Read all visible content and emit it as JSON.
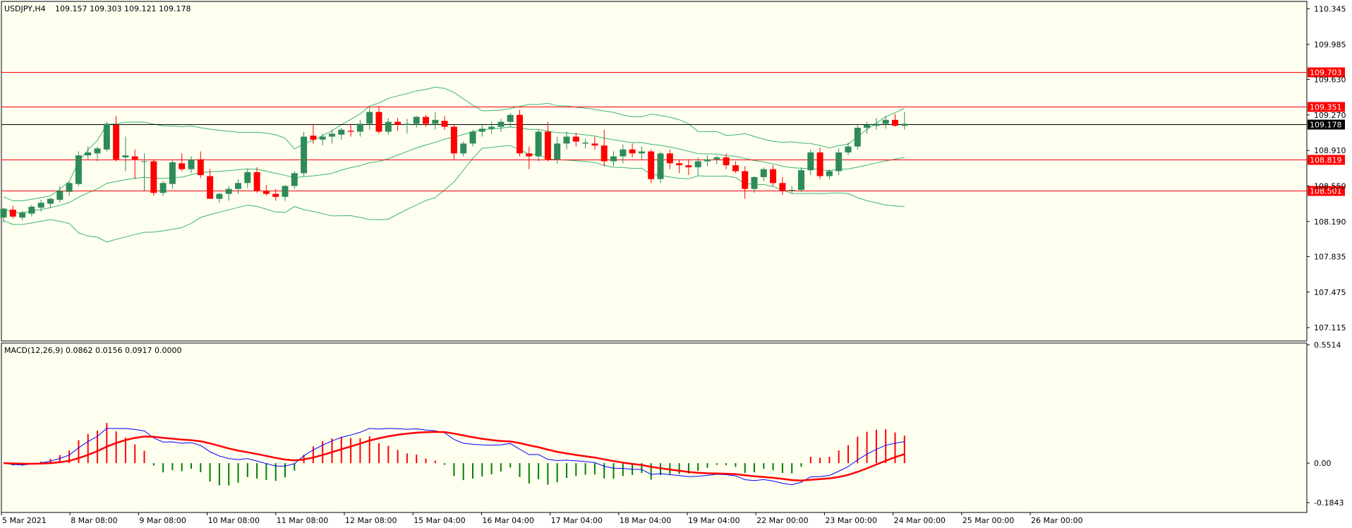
{
  "header": {
    "symbol": "USDJPY,H4",
    "ohlc": "109.157 109.303 109.121 109.178"
  },
  "macd": {
    "label": "MACD(12,26,9) 0.0862 0.0156 0.0917 0.0000"
  },
  "colors": {
    "background": "#fffff0",
    "bull_candle": "#2e8b57",
    "bear_candle": "#ff0000",
    "bollinger": "#3cb371",
    "level_line": "#ff0000",
    "price_line": "#000000",
    "macd_main": "#0000ff",
    "macd_signal": "#ff0000",
    "hist_positive": "#ff0000",
    "hist_negative": "#008000"
  },
  "chart_data": [
    {
      "type": "candlestick",
      "title": "USDJPY,H4",
      "ylim": [
        106.98,
        110.42
      ],
      "y_ticks": [
        "110.345",
        "109.985",
        "109.630",
        "109.270",
        "108.910",
        "108.550",
        "108.190",
        "107.835",
        "107.475",
        "107.115"
      ],
      "horizontal_levels": [
        {
          "value": 109.703,
          "label": "109.703"
        },
        {
          "value": 109.351,
          "label": "109.351"
        },
        {
          "value": 108.819,
          "label": "108.819"
        },
        {
          "value": 108.501,
          "label": "108.501"
        }
      ],
      "current_price": {
        "value": 109.178,
        "label": "109.178"
      },
      "x_labels": [
        "5 Mar 2021",
        "8 Mar 08:00",
        "9 Mar 08:00",
        "10 Mar 08:00",
        "11 Mar 08:00",
        "12 Mar 08:00",
        "15 Mar 04:00",
        "16 Mar 04:00",
        "17 Mar 04:00",
        "18 Mar 04:00",
        "19 Mar 04:00",
        "22 Mar 00:00",
        "23 Mar 00:00",
        "24 Mar 00:00",
        "25 Mar 00:00",
        "26 Mar 00:00"
      ],
      "candles": [
        [
          108.23,
          108.33,
          108.18,
          108.32
        ],
        [
          108.31,
          108.35,
          108.22,
          108.24
        ],
        [
          108.23,
          108.3,
          108.2,
          108.28
        ],
        [
          108.27,
          108.36,
          108.24,
          108.34
        ],
        [
          108.33,
          108.41,
          108.29,
          108.38
        ],
        [
          108.37,
          108.43,
          108.33,
          108.42
        ],
        [
          108.41,
          108.55,
          108.38,
          108.5
        ],
        [
          108.49,
          108.6,
          108.45,
          108.58
        ],
        [
          108.57,
          108.9,
          108.55,
          108.86
        ],
        [
          108.86,
          108.95,
          108.82,
          108.89
        ],
        [
          108.88,
          108.95,
          108.8,
          108.93
        ],
        [
          108.92,
          109.2,
          108.9,
          109.18
        ],
        [
          109.17,
          109.26,
          108.8,
          108.82
        ],
        [
          108.84,
          109.05,
          108.7,
          108.86
        ],
        [
          108.85,
          108.92,
          108.62,
          108.82
        ],
        [
          108.8,
          108.88,
          108.5,
          108.8
        ],
        [
          108.8,
          108.82,
          108.45,
          108.48
        ],
        [
          108.48,
          108.6,
          108.45,
          108.58
        ],
        [
          108.57,
          108.82,
          108.52,
          108.79
        ],
        [
          108.78,
          108.88,
          108.7,
          108.72
        ],
        [
          108.72,
          108.85,
          108.68,
          108.82
        ],
        [
          108.82,
          108.9,
          108.63,
          108.66
        ],
        [
          108.65,
          108.72,
          108.42,
          108.42
        ],
        [
          108.42,
          108.48,
          108.38,
          108.47
        ],
        [
          108.47,
          108.55,
          108.4,
          108.52
        ],
        [
          108.52,
          108.62,
          108.47,
          108.58
        ],
        [
          108.58,
          108.72,
          108.53,
          108.69
        ],
        [
          108.69,
          108.74,
          108.48,
          108.5
        ],
        [
          108.5,
          108.56,
          108.45,
          108.47
        ],
        [
          108.47,
          108.52,
          108.4,
          108.44
        ],
        [
          108.44,
          108.56,
          108.4,
          108.55
        ],
        [
          108.55,
          108.7,
          108.52,
          108.68
        ],
        [
          108.68,
          109.1,
          108.65,
          109.05
        ],
        [
          109.06,
          109.18,
          108.98,
          109.02
        ],
        [
          109.02,
          109.08,
          108.96,
          109.05
        ],
        [
          109.05,
          109.12,
          108.98,
          109.08
        ],
        [
          109.07,
          109.14,
          109.02,
          109.12
        ],
        [
          109.11,
          109.18,
          109.05,
          109.1
        ],
        [
          109.1,
          109.22,
          109.05,
          109.18
        ],
        [
          109.18,
          109.35,
          109.12,
          109.3
        ],
        [
          109.3,
          109.36,
          109.08,
          109.1
        ],
        [
          109.1,
          109.24,
          109.07,
          109.2
        ],
        [
          109.2,
          109.24,
          109.11,
          109.17
        ],
        [
          109.17,
          109.23,
          109.08,
          109.18
        ],
        [
          109.18,
          109.26,
          109.14,
          109.25
        ],
        [
          109.25,
          109.27,
          109.15,
          109.18
        ],
        [
          109.18,
          109.3,
          109.12,
          109.22
        ],
        [
          109.21,
          109.26,
          109.12,
          109.15
        ],
        [
          109.15,
          109.18,
          108.82,
          108.88
        ],
        [
          108.88,
          109.0,
          108.85,
          108.98
        ],
        [
          108.98,
          109.12,
          108.95,
          109.1
        ],
        [
          109.1,
          109.18,
          109.05,
          109.13
        ],
        [
          109.13,
          109.2,
          109.08,
          109.15
        ],
        [
          109.15,
          109.23,
          109.1,
          109.2
        ],
        [
          109.2,
          109.29,
          109.15,
          109.27
        ],
        [
          109.27,
          109.32,
          108.85,
          108.88
        ],
        [
          108.88,
          108.95,
          108.72,
          108.85
        ],
        [
          108.85,
          109.12,
          108.8,
          109.1
        ],
        [
          109.1,
          109.2,
          108.8,
          108.82
        ],
        [
          108.82,
          109.05,
          108.78,
          108.98
        ],
        [
          108.98,
          109.1,
          108.92,
          109.05
        ],
        [
          109.05,
          109.09,
          108.95,
          109.0
        ],
        [
          108.98,
          109.03,
          108.93,
          108.99
        ],
        [
          108.98,
          109.05,
          108.92,
          108.96
        ],
        [
          108.96,
          109.12,
          108.75,
          108.8
        ],
        [
          108.8,
          108.9,
          108.75,
          108.85
        ],
        [
          108.85,
          108.97,
          108.78,
          108.92
        ],
        [
          108.92,
          108.98,
          108.84,
          108.88
        ],
        [
          108.88,
          108.95,
          108.82,
          108.9
        ],
        [
          108.9,
          108.92,
          108.58,
          108.62
        ],
        [
          108.62,
          108.9,
          108.58,
          108.88
        ],
        [
          108.88,
          108.92,
          108.72,
          108.78
        ],
        [
          108.78,
          108.82,
          108.68,
          108.76
        ],
        [
          108.76,
          108.82,
          108.66,
          108.74
        ],
        [
          108.74,
          108.84,
          108.66,
          108.8
        ],
        [
          108.8,
          108.86,
          108.75,
          108.82
        ],
        [
          108.82,
          108.86,
          108.77,
          108.84
        ],
        [
          108.84,
          108.88,
          108.72,
          108.76
        ],
        [
          108.76,
          108.8,
          108.68,
          108.7
        ],
        [
          108.7,
          108.75,
          108.42,
          108.52
        ],
        [
          108.52,
          108.65,
          108.48,
          108.64
        ],
        [
          108.64,
          108.74,
          108.6,
          108.72
        ],
        [
          108.72,
          108.76,
          108.55,
          108.58
        ],
        [
          108.58,
          108.64,
          108.46,
          108.5
        ],
        [
          108.5,
          108.55,
          108.47,
          108.51
        ],
        [
          108.51,
          108.74,
          108.49,
          108.71
        ],
        [
          108.71,
          108.92,
          108.66,
          108.89
        ],
        [
          108.89,
          108.94,
          108.62,
          108.65
        ],
        [
          108.65,
          108.72,
          108.62,
          108.7
        ],
        [
          108.7,
          108.93,
          108.66,
          108.89
        ],
        [
          108.89,
          108.99,
          108.86,
          108.95
        ],
        [
          108.95,
          109.18,
          108.92,
          109.14
        ],
        [
          109.14,
          109.2,
          109.08,
          109.17
        ],
        [
          109.16,
          109.24,
          109.12,
          109.18
        ],
        [
          109.18,
          109.26,
          109.13,
          109.22
        ],
        [
          109.22,
          109.28,
          109.15,
          109.16
        ],
        [
          109.16,
          109.3,
          109.12,
          109.18
        ]
      ]
    },
    {
      "type": "macd",
      "series_name": "MACD(12,26,9)",
      "values_shown": [
        "0.0862",
        "0.0156",
        "0.0917",
        "0.0000"
      ],
      "ylim": [
        -0.23,
        0.56
      ],
      "y_ticks": [
        "0.5514",
        "0.00",
        "-0.1843"
      ]
    }
  ]
}
